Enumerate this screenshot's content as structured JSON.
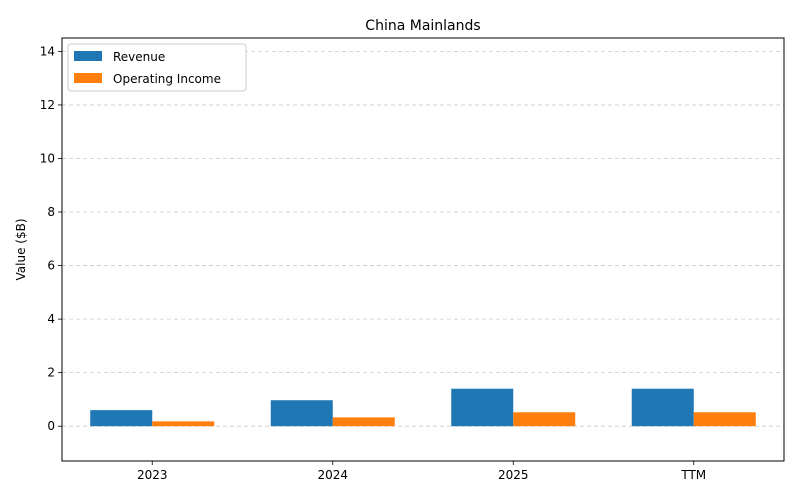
{
  "chart_data": {
    "type": "bar",
    "title": "China Mainlands",
    "xlabel": "",
    "ylabel": "Value ($B)",
    "categories": [
      "2023",
      "2024",
      "2025",
      "TTM"
    ],
    "series": [
      {
        "name": "Revenue",
        "values": [
          0.6,
          0.97,
          1.4,
          1.4
        ],
        "color": "#1f77b4"
      },
      {
        "name": "Operating Income",
        "values": [
          0.18,
          0.33,
          0.52,
          0.52
        ],
        "color": "#ff7f0e"
      }
    ],
    "ylim": [
      -1.3,
      14.5
    ],
    "yticks": [
      0,
      2,
      4,
      6,
      8,
      10,
      12,
      14
    ],
    "grid": "y-dashed",
    "legend": "top-left"
  }
}
